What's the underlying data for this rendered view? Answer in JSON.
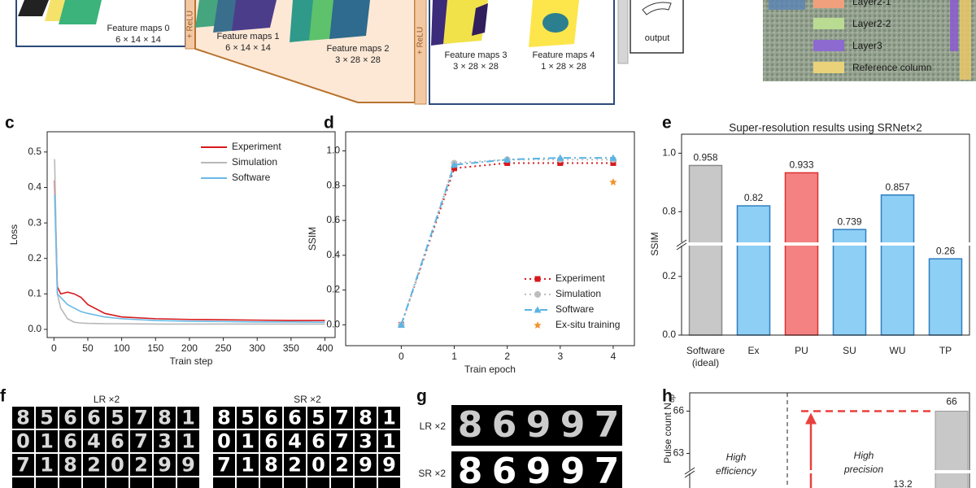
{
  "diagram": {
    "feature_maps": [
      {
        "label": "Feature maps 0",
        "size": "6 × 14 × 14"
      },
      {
        "label": "Feature maps 1",
        "size": "6 × 14 × 14"
      },
      {
        "label": "Feature maps 2",
        "size": "3 × 28 × 28"
      },
      {
        "label": "Feature maps 3",
        "size": "3 × 28 × 28"
      },
      {
        "label": "Feature maps 4",
        "size": "1 × 28 × 28"
      }
    ],
    "activations": [
      "+ ReLU",
      "+ ReLU"
    ],
    "output": "output",
    "chip_legend": [
      "Layer2-1",
      "Layer2-2",
      "Layer3",
      "Reference column"
    ]
  },
  "panel_labels": [
    "c",
    "d",
    "e",
    "f",
    "g",
    "h"
  ],
  "chart_data": [
    {
      "type": "line",
      "x_label": "Train step",
      "y_label": "Loss",
      "x": [
        1,
        5,
        10,
        20,
        30,
        40,
        50,
        75,
        100,
        150,
        200,
        250,
        300,
        350,
        400
      ],
      "series": [
        {
          "name": "Experiment",
          "color": "#d7191c",
          "values": [
            0.42,
            0.12,
            0.1,
            0.105,
            0.1,
            0.09,
            0.07,
            0.045,
            0.035,
            0.03,
            0.028,
            0.027,
            0.026,
            0.025,
            0.025
          ]
        },
        {
          "name": "Simulation",
          "color": "#b8b8b8",
          "values": [
            0.48,
            0.1,
            0.06,
            0.03,
            0.02,
            0.018,
            0.017,
            0.016,
            0.016,
            0.015,
            0.015,
            0.015,
            0.015,
            0.015,
            0.015
          ]
        },
        {
          "name": "Software",
          "color": "#6ab9e6",
          "values": [
            0.38,
            0.1,
            0.09,
            0.07,
            0.06,
            0.05,
            0.045,
            0.035,
            0.03,
            0.025,
            0.023,
            0.022,
            0.021,
            0.021,
            0.02
          ]
        }
      ],
      "xlim": [
        -10,
        415
      ],
      "xticks": [
        0,
        50,
        100,
        150,
        200,
        250,
        300,
        350,
        400
      ],
      "ylim": [
        -0.023,
        0.557
      ],
      "yticks": [
        {
          "value": 0,
          "label": "0.0"
        },
        0.1,
        0.2,
        0.3,
        0.4,
        0.5
      ],
      "legend": "upper right"
    },
    {
      "type": "line",
      "x_label": "Train epoch",
      "y_label": "SSIM",
      "x": [
        0,
        1,
        2,
        3,
        4
      ],
      "series": [
        {
          "name": "Experiment",
          "color": "#d7191c",
          "values": [
            0,
            0.9,
            0.93,
            0.93,
            0.93
          ],
          "marker": "square",
          "dash": "2 4",
          "line": true
        },
        {
          "name": "Simulation",
          "color": "#bdbdbd",
          "values": [
            0,
            0.93,
            0.95,
            0.95,
            0.95
          ],
          "marker": "circle",
          "dash": "2 4",
          "line": true
        },
        {
          "name": "Software",
          "color": "#5ab4e5",
          "values": [
            0,
            0.92,
            0.95,
            0.96,
            0.96
          ],
          "marker": "triangle",
          "dash": "9 4 2 4",
          "line": true
        },
        {
          "name": "Ex-situ training",
          "color": "#f0922b",
          "values": [
            null,
            null,
            null,
            null,
            0.82
          ],
          "marker": "star",
          "line": false
        }
      ],
      "xlim": [
        -1.05,
        4.4
      ],
      "xticks": [
        0,
        1,
        2,
        3,
        4
      ],
      "ylim": [
        -0.12,
        1.11
      ],
      "yticks": [
        {
          "value": 0,
          "label": "0.0"
        },
        0.2,
        0.4,
        0.6,
        0.8,
        {
          "value": 1,
          "label": "1.0"
        }
      ],
      "legend": "lower right"
    },
    {
      "type": "bar",
      "title": "Super-resolution results using SRNet×2",
      "y_label": "SSIM",
      "categories": [
        "Software (ideal)",
        "Ex",
        "PU",
        "SU",
        "WU",
        "TP"
      ],
      "values": [
        0.958,
        0.82,
        0.933,
        0.739,
        0.857,
        0.26
      ],
      "colors": [
        "#c8c8c8",
        "#8dcff5",
        "#f58282",
        "#8dcff5",
        "#8dcff5",
        "#8dcff5"
      ],
      "edge_colors": [
        "#8a8a8a",
        "#2f7fc1",
        "#d93030",
        "#2f7fc1",
        "#2f7fc1",
        "#2f7fc1"
      ],
      "ylim_segments": [
        [
          0,
          0.305
        ],
        [
          0.695,
          1.065
        ]
      ],
      "yticks": [
        {
          "value": 0,
          "label": "0.0"
        },
        0.2,
        0.8,
        {
          "value": 1,
          "label": "1.0"
        }
      ]
    },
    {
      "type": "bar",
      "y_label": "Pulse count N",
      "y_label_sub": "up",
      "categories": [
        null
      ],
      "values": [
        66
      ],
      "color": "#c8c8c8",
      "reference_color": "#e8413c",
      "ylim": [
        61.7,
        67.3
      ],
      "yticks": [
        63,
        66
      ],
      "annotations": [
        "High efficiency",
        "High precision",
        "13.2"
      ]
    }
  ],
  "images": {
    "f": {
      "titles": [
        "LR ×2",
        "SR ×2"
      ],
      "rows": [
        "85665781",
        "01646731",
        "71820299"
      ]
    },
    "g": {
      "labels": [
        "LR ×2",
        "SR ×2"
      ],
      "digits": "86997"
    }
  }
}
